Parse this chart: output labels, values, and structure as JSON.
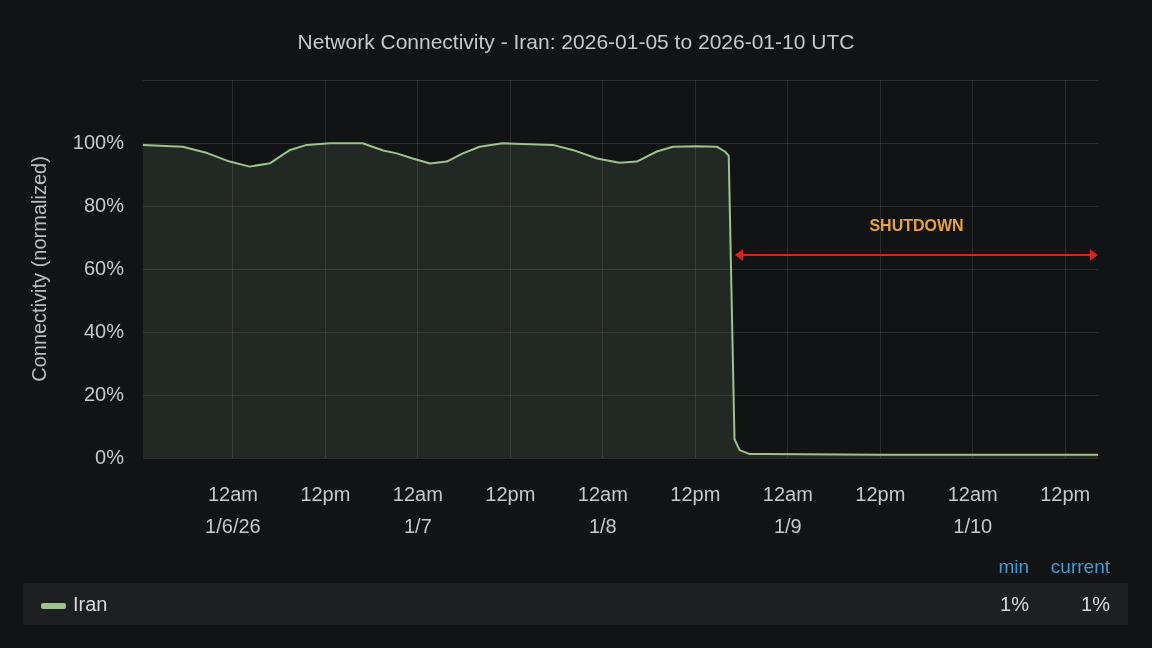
{
  "chart_data": {
    "type": "area",
    "title": "Network Connectivity - Iran: 2026-01-05 to 2026-01-10 UTC",
    "ylabel": "Connectivity (normalized)",
    "x": [
      "2026-01-05T12:20",
      "2026-01-05T17:30",
      "2026-01-05T20:40",
      "2026-01-05T23:35",
      "2026-01-06T02:10",
      "2026-01-06T04:50",
      "2026-01-06T07:25",
      "2026-01-06T09:35",
      "2026-01-06T12:35",
      "2026-01-06T16:50",
      "2026-01-06T19:30",
      "2026-01-06T21:15",
      "2026-01-06T23:20",
      "2026-01-07T01:35",
      "2026-01-07T03:45",
      "2026-01-07T05:50",
      "2026-01-07T08:00",
      "2026-01-07T11:00",
      "2026-01-07T17:30",
      "2026-01-07T20:05",
      "2026-01-07T23:15",
      "2026-01-08T02:10",
      "2026-01-08T04:25",
      "2026-01-08T07:00",
      "2026-01-08T09:05",
      "2026-01-08T12:10",
      "2026-01-08T14:50",
      "2026-01-08T15:50",
      "2026-01-08T16:20",
      "2026-01-08T17:05",
      "2026-01-08T17:45",
      "2026-01-08T19:00",
      "2026-01-09T12:00",
      "2026-01-10T00:00",
      "2026-01-10T16:15"
    ],
    "series": [
      {
        "name": "Iran",
        "color": "#9dc28d",
        "values": [
          99.4,
          98.8,
          96.8,
          94.1,
          92.5,
          93.6,
          97.8,
          99.4,
          99.9,
          99.9,
          97.6,
          96.7,
          95.1,
          93.5,
          94.1,
          96.7,
          98.8,
          99.9,
          99.4,
          97.8,
          95.1,
          93.7,
          94.1,
          97.3,
          98.8,
          99.0,
          98.8,
          97.3,
          96,
          6,
          2.5,
          1.3,
          1,
          1,
          1
        ]
      }
    ],
    "xlim": [
      "2026-01-05T12:20",
      "2026-01-10T16:15"
    ],
    "xticks": [
      {
        "value": "2026-01-06T00:00",
        "label": "12am 1/6/26"
      },
      {
        "value": "2026-01-06T12:00",
        "label": "12pm"
      },
      {
        "value": "2026-01-07T00:00",
        "label": "12am 1/7"
      },
      {
        "value": "2026-01-07T12:00",
        "label": "12pm"
      },
      {
        "value": "2026-01-08T00:00",
        "label": "12am 1/8"
      },
      {
        "value": "2026-01-08T12:00",
        "label": "12pm"
      },
      {
        "value": "2026-01-09T00:00",
        "label": "12am 1/9"
      },
      {
        "value": "2026-01-09T12:00",
        "label": "12pm"
      },
      {
        "value": "2026-01-10T00:00",
        "label": "12am 1/10"
      },
      {
        "value": "2026-01-10T12:00",
        "label": "12pm"
      }
    ],
    "ylim": [
      0,
      120
    ],
    "yticks": [
      {
        "value": 0,
        "label": "0%"
      },
      {
        "value": 20,
        "label": "20%"
      },
      {
        "value": 40,
        "label": "40%"
      },
      {
        "value": 60,
        "label": "60%"
      },
      {
        "value": 80,
        "label": "80%"
      },
      {
        "value": 100,
        "label": "100%"
      },
      {
        "value": 120,
        "label": null
      }
    ],
    "grid": true,
    "legend": "bottom",
    "marker": "none",
    "annotations": [
      "SHUTDOWN",
      "min",
      "current",
      "1%",
      "1%"
    ]
  }
}
